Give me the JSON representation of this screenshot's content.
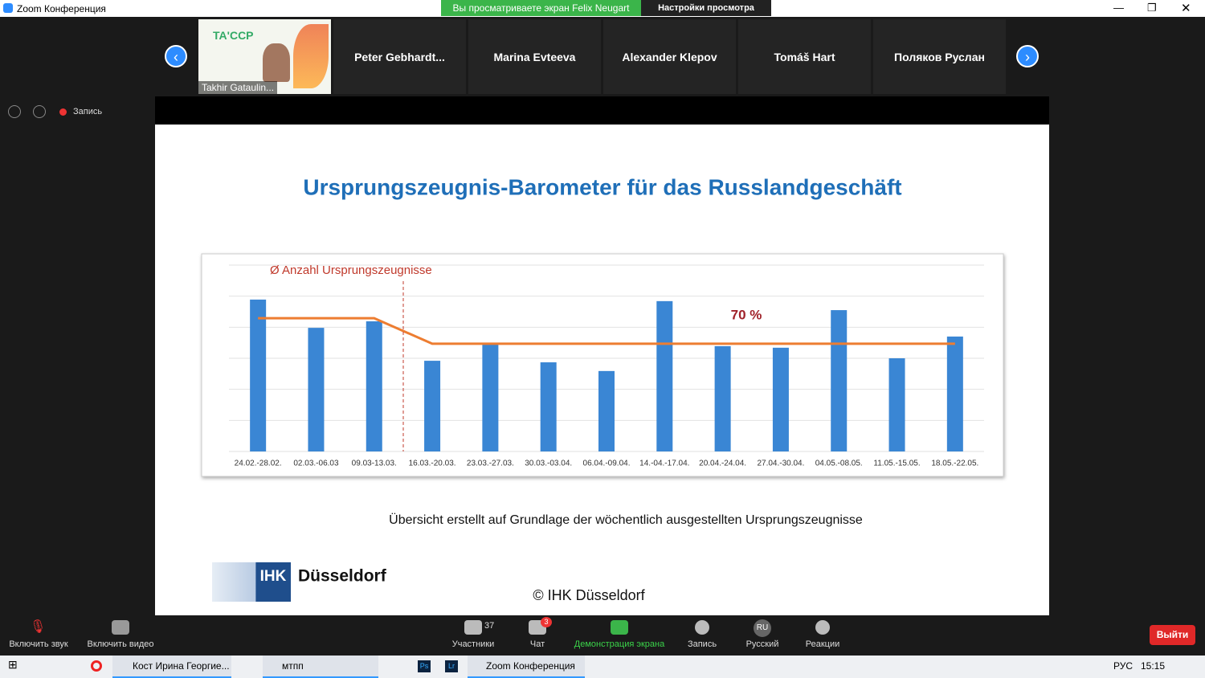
{
  "window": {
    "title": "Zoom Конференция"
  },
  "banner": {
    "viewing": "Вы просматриваете экран Felix Neugart",
    "options": "Настройки просмотра"
  },
  "participants": [
    "Takhir Gataulin...",
    "Peter  Gebhardt...",
    "Marina Evteeva",
    "Alexander Klepov",
    "Tomáš Hart",
    "Поляков Руслан"
  ],
  "recording": "Запись",
  "chart_data": {
    "type": "bar",
    "title": "Ursprungszeugnis-Barometer für das Russlandgeschäft",
    "categories": [
      "24.02.-28.02.",
      "02.03.-06.03",
      "09.03-13.03.",
      "16.03.-20.03.",
      "23.03.-27.03.",
      "30.03.-03.04.",
      "06.04.-09.04.",
      "14.-04.-17.04.",
      "20.04.-24.04.",
      "27.04.-30.04.",
      "04.05.-08.05.",
      "11.05.-15.05.",
      "18.05.-22.05."
    ],
    "values": [
      4.89,
      3.98,
      4.19,
      2.92,
      3.44,
      2.87,
      2.59,
      4.84,
      3.39,
      3.34,
      4.55,
      3.0,
      3.7
    ],
    "color": "#3a86d4",
    "line": {
      "name": "Ø Anzahl Ursprungszeugnisse",
      "color": "#ed7d31",
      "values": [
        4.29,
        4.29,
        4.29,
        3.47,
        3.47,
        3.47,
        3.47,
        3.47,
        3.47,
        3.47,
        3.47,
        3.47,
        3.47
      ]
    },
    "annotation": "70 %",
    "ylim": [
      0,
      6
    ],
    "grid": true
  },
  "slide": {
    "footnote": "Übersicht erstellt auf Grundlage der wöchentlich ausgestellten Ursprungszeugnisse",
    "logo_abbr": "IHK",
    "logo_name": "Düsseldorf",
    "copyright": "© IHK Düsseldorf"
  },
  "toolbar": {
    "audio": "Включить звук",
    "video": "Включить видео",
    "participants": "Участники",
    "participants_count": "37",
    "chat": "Чат",
    "chat_badge": "3",
    "share": "Демонстрация экрана",
    "record": "Запись",
    "language": "Русский",
    "language_code": "RU",
    "reactions": "Реакции",
    "leave": "Выйти"
  },
  "taskbar": {
    "chrome": "Кост Ирина Георгие...",
    "folder": "мтпп",
    "ps": "Ps",
    "lr": "Lr",
    "zoom": "Zoom Конференция",
    "lang": "РУС",
    "time": "15:15"
  }
}
